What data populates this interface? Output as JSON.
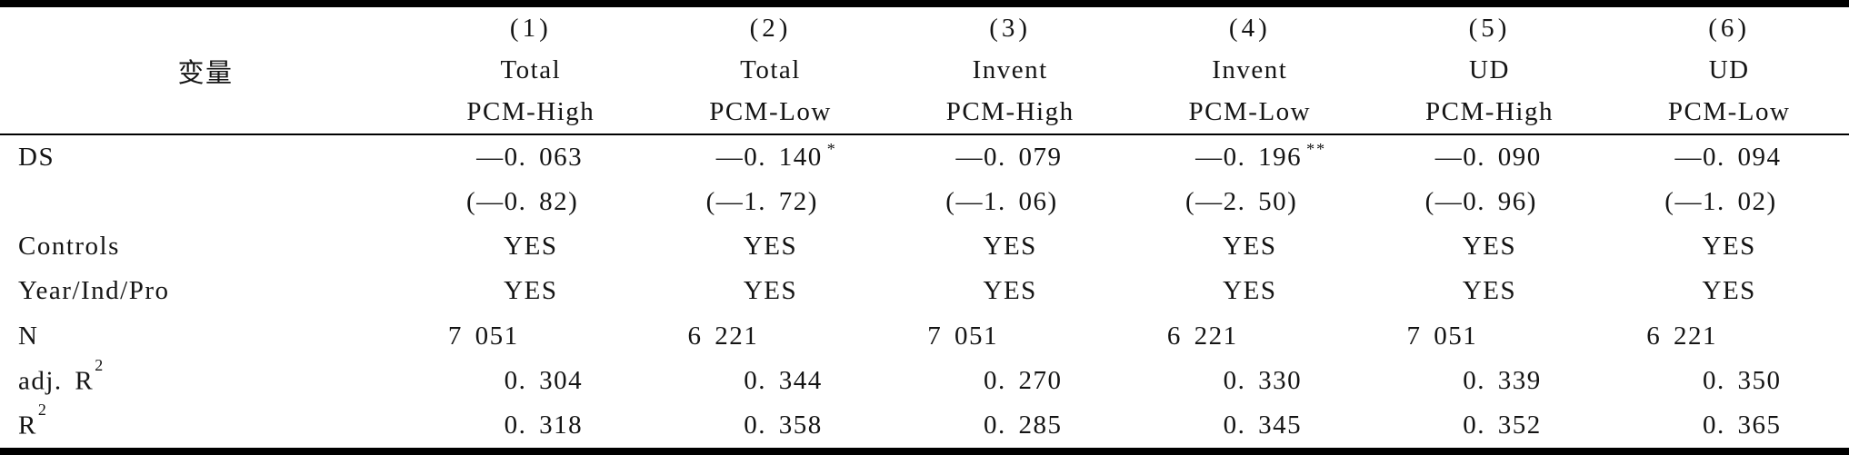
{
  "table": {
    "header": {
      "label": "变量",
      "columns": [
        {
          "num": "(1)",
          "group": "Total",
          "sub": "PCM-High"
        },
        {
          "num": "(2)",
          "group": "Total",
          "sub": "PCM-Low"
        },
        {
          "num": "(3)",
          "group": "Invent",
          "sub": "PCM-High"
        },
        {
          "num": "(4)",
          "group": "Invent",
          "sub": "PCM-Low"
        },
        {
          "num": "(5)",
          "group": "UD",
          "sub": "PCM-High"
        },
        {
          "num": "(6)",
          "group": "UD",
          "sub": "PCM-Low"
        }
      ]
    },
    "rows": [
      {
        "label": "DS",
        "cells": [
          {
            "v": "—0. 063"
          },
          {
            "v": "—0. 140",
            "stars": "*"
          },
          {
            "v": "—0. 079"
          },
          {
            "v": "—0. 196",
            "stars": "**"
          },
          {
            "v": "—0. 090"
          },
          {
            "v": "—0. 094"
          }
        ]
      },
      {
        "label": "",
        "cells": [
          {
            "v": "(—0. 82)"
          },
          {
            "v": "(—1. 72)"
          },
          {
            "v": "(—1. 06)"
          },
          {
            "v": "(—2. 50)"
          },
          {
            "v": "(—0. 96)"
          },
          {
            "v": "(—1. 02)"
          }
        ]
      },
      {
        "label": "Controls",
        "cells": [
          {
            "v": "YES"
          },
          {
            "v": "YES"
          },
          {
            "v": "YES"
          },
          {
            "v": "YES"
          },
          {
            "v": "YES"
          },
          {
            "v": "YES"
          }
        ]
      },
      {
        "label": "Year/Ind/Pro",
        "cells": [
          {
            "v": "YES"
          },
          {
            "v": "YES"
          },
          {
            "v": "YES"
          },
          {
            "v": "YES"
          },
          {
            "v": "YES"
          },
          {
            "v": "YES"
          }
        ]
      },
      {
        "label": "N",
        "cells": [
          {
            "v": "7 051"
          },
          {
            "v": "6 221"
          },
          {
            "v": "7 051"
          },
          {
            "v": "6 221"
          },
          {
            "v": "7 051"
          },
          {
            "v": "6 221"
          }
        ]
      },
      {
        "label": "adj. R",
        "label_sup": "2",
        "cells": [
          {
            "v": "0. 304"
          },
          {
            "v": "0. 344"
          },
          {
            "v": "0. 270"
          },
          {
            "v": "0. 330"
          },
          {
            "v": "0. 339"
          },
          {
            "v": "0. 350"
          }
        ]
      },
      {
        "label": "R",
        "label_sup": "2",
        "cells": [
          {
            "v": "0. 318"
          },
          {
            "v": "0. 358"
          },
          {
            "v": "0. 285"
          },
          {
            "v": "0. 345"
          },
          {
            "v": "0. 352"
          },
          {
            "v": "0. 365"
          }
        ]
      }
    ]
  }
}
